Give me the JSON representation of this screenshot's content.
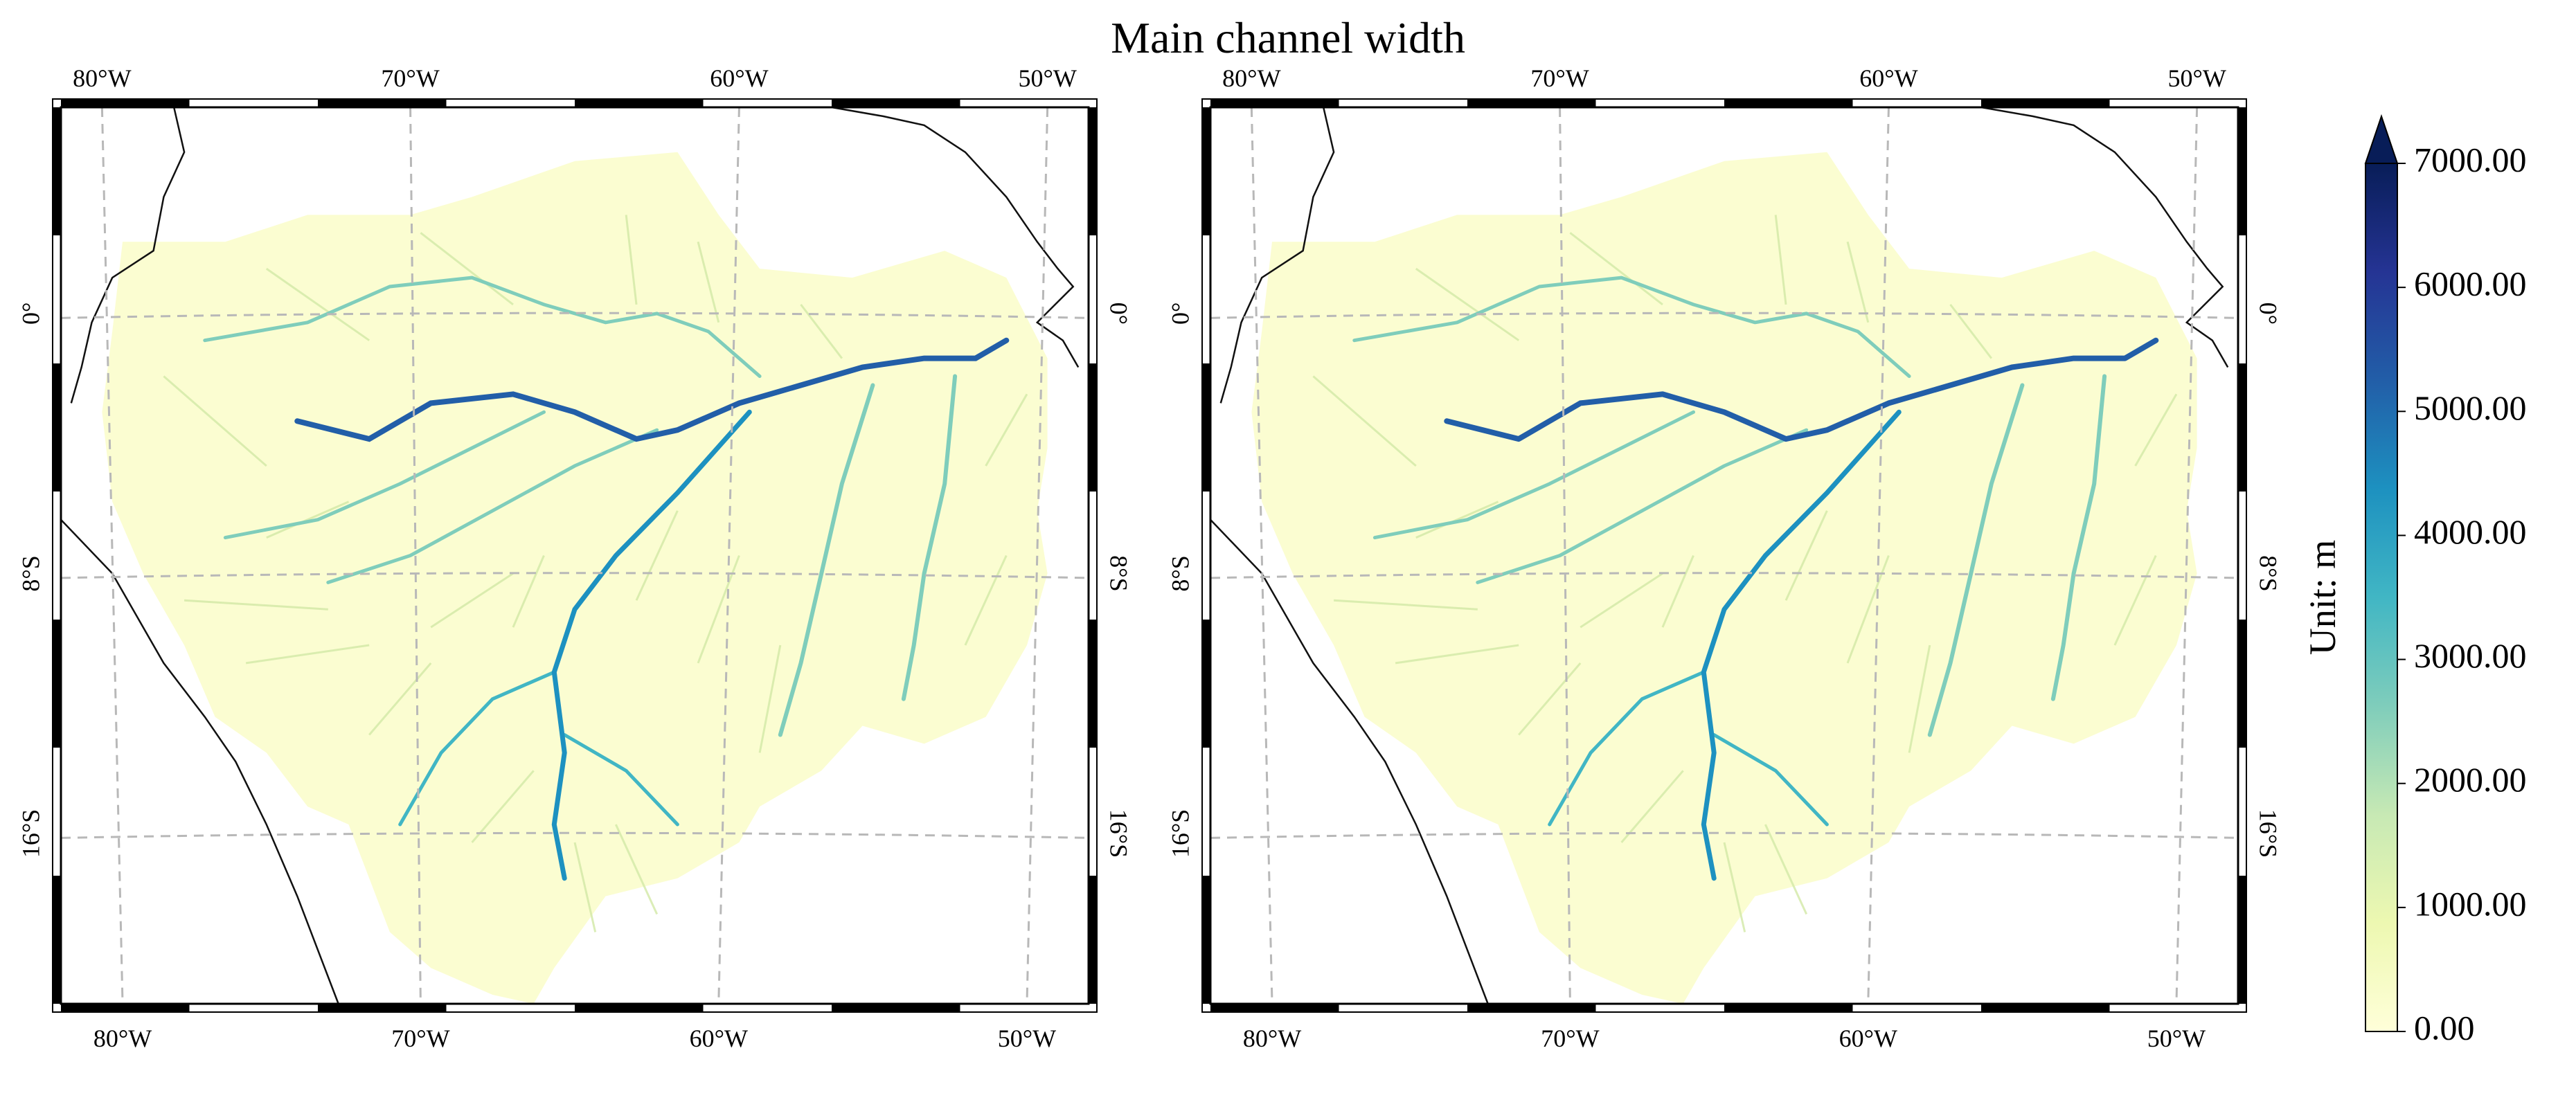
{
  "title": "Main channel width",
  "map": {
    "lon_labels": [
      "80°W",
      "70°W",
      "60°W",
      "50°W"
    ],
    "lat_labels": [
      "0°",
      "8°S",
      "16°S"
    ],
    "panels": [
      {
        "name": "left-panel",
        "style": "pixelated"
      },
      {
        "name": "right-panel",
        "style": "smooth"
      }
    ]
  },
  "colorbar": {
    "label": "Unit: m",
    "ticks": [
      "0.00",
      "1000.00",
      "2000.00",
      "3000.00",
      "4000.00",
      "5000.00",
      "6000.00",
      "7000.00"
    ],
    "colormap": [
      "#ffffd9",
      "#edf8b1",
      "#c7e9b4",
      "#7fcdbb",
      "#41b6c4",
      "#1d91c0",
      "#225ea8",
      "#253494",
      "#081d58"
    ],
    "extend": "max"
  },
  "colors": {
    "basin_fill": "#fbfdd1",
    "tributary": "#d2e9a6",
    "coastline": "#111111",
    "grid": "#b8b8b8"
  }
}
